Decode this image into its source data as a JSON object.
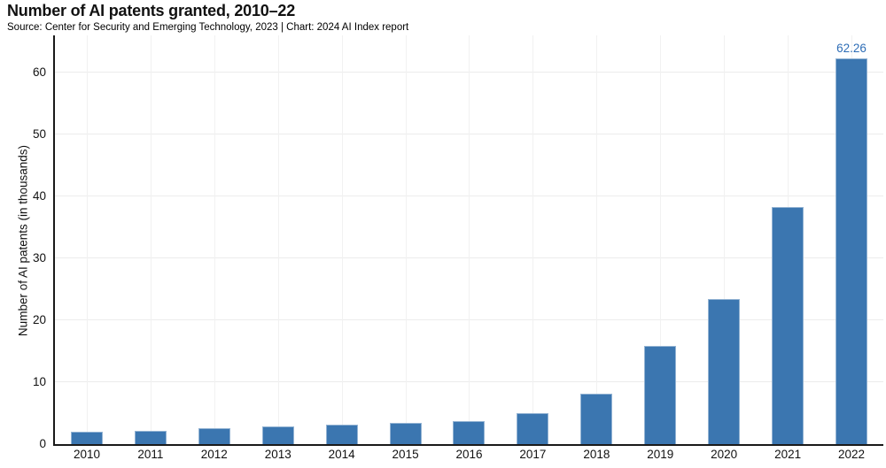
{
  "header": {
    "title": "Number of AI patents granted, 2010–22",
    "source_line": "Source: Center for Security and Emerging Technology, 2023 | Chart: 2024 AI Index report"
  },
  "colors": {
    "bar_fill": "#3b76b0",
    "bar_edge_highlight": "#a9c6e2",
    "value_label": "#2e6db6",
    "axis_line": "#1a1a1a",
    "gridline": "#ececec",
    "text": "#111111",
    "background": "#ffffff"
  },
  "chart_data": {
    "type": "bar",
    "title": "Number of AI patents granted, 2010–22",
    "subtitle": "Source: Center for Security and Emerging Technology, 2023 | Chart: 2024 AI Index report",
    "xlabel": "",
    "ylabel": "Number of AI patents (in thousands)",
    "categories": [
      "2010",
      "2011",
      "2012",
      "2013",
      "2014",
      "2015",
      "2016",
      "2017",
      "2018",
      "2019",
      "2020",
      "2021",
      "2022"
    ],
    "values": [
      2.0,
      2.2,
      2.6,
      2.8,
      3.1,
      3.4,
      3.7,
      5.0,
      8.2,
      15.8,
      23.4,
      38.3,
      62.26
    ],
    "value_labels": [
      "",
      "",
      "",
      "",
      "",
      "",
      "",
      "",
      "",
      "",
      "",
      "",
      "62.26"
    ],
    "yticks": [
      0,
      10,
      20,
      30,
      40,
      50,
      60
    ],
    "ylim": [
      0,
      66
    ],
    "grid": "light horizontal gridlines at y ticks and faint vertical gridlines at bar centers",
    "legend": "none",
    "single_series_color": "#3b76b0"
  }
}
